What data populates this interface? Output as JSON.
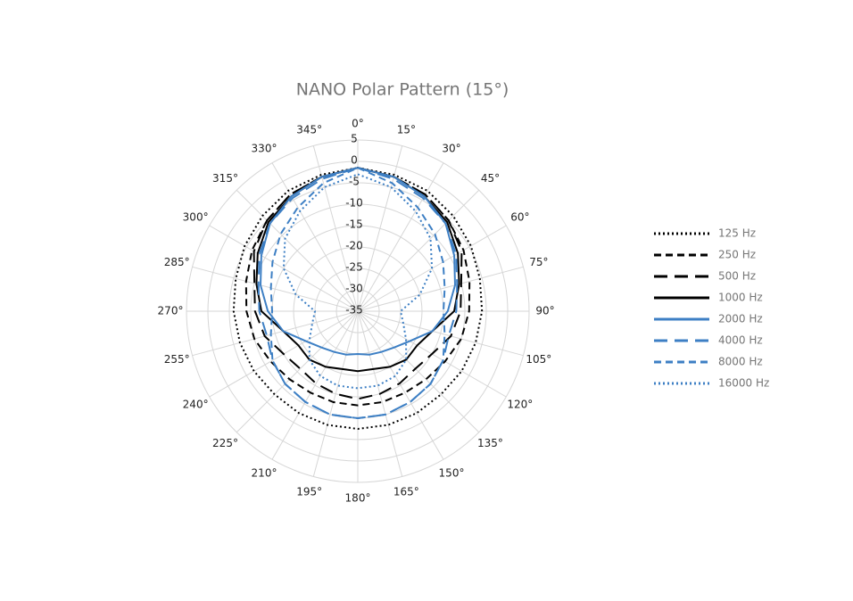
{
  "chart_data": {
    "type": "polar",
    "title": "NANO Polar Pattern (15°)",
    "categories": [
      "0°",
      "15°",
      "30°",
      "45°",
      "60°",
      "75°",
      "90°",
      "105°",
      "120°",
      "135°",
      "150°",
      "165°",
      "180°",
      "195°",
      "210°",
      "225°",
      "240°",
      "255°",
      "270°",
      "285°",
      "300°",
      "315°",
      "330°",
      "345°"
    ],
    "rlim": [
      -35,
      5
    ],
    "rticks": [
      -35,
      -30,
      -25,
      -20,
      -15,
      -10,
      -5,
      0,
      5
    ],
    "grid": true,
    "legend": "right",
    "series": [
      {
        "name": "125 Hz",
        "color": "#000000",
        "dash": "dot",
        "values": [
          -1.5,
          -2,
          -2.5,
          -3.5,
          -4.5,
          -5.5,
          -6,
          -6.5,
          -7,
          -7.5,
          -7.5,
          -7.5,
          -7.5,
          -7.5,
          -7.5,
          -7.5,
          -7,
          -6.5,
          -6,
          -5.5,
          -4.5,
          -3.5,
          -2.5,
          -2
        ]
      },
      {
        "name": "250 Hz",
        "color": "#000000",
        "dash": "dash",
        "values": [
          -1.5,
          -2.5,
          -3.5,
          -5,
          -6.5,
          -8,
          -9,
          -10,
          -11.5,
          -12.5,
          -13,
          -13,
          -13,
          -13,
          -13,
          -12.5,
          -11.5,
          -10,
          -9,
          -8,
          -6.5,
          -5,
          -3.5,
          -2.5
        ]
      },
      {
        "name": "500 Hz",
        "color": "#000000",
        "dash": "longdash",
        "values": [
          -1.5,
          -2.5,
          -3.5,
          -5,
          -7,
          -10,
          -11,
          -12.5,
          -15,
          -16,
          -15.5,
          -15,
          -14.5,
          -15,
          -15.5,
          -16,
          -15,
          -12.5,
          -11,
          -10,
          -7,
          -5,
          -3.5,
          -2.5
        ]
      },
      {
        "name": "1000 Hz",
        "color": "#000000",
        "dash": "solid",
        "values": [
          -1.5,
          -2.5,
          -4,
          -5.5,
          -8,
          -10.5,
          -12.5,
          -17,
          -19,
          -19,
          -20,
          -21,
          -21,
          -21,
          -20,
          -19,
          -19,
          -17,
          -12.5,
          -10.5,
          -8,
          -5.5,
          -4,
          -2.5
        ]
      },
      {
        "name": "2000 Hz",
        "color": "#3d7fc4",
        "dash": "solid",
        "values": [
          -1.5,
          -2.5,
          -4,
          -6,
          -9,
          -11.5,
          -14,
          -17,
          -21,
          -23,
          -24,
          -24.5,
          -25,
          -24.5,
          -24,
          -23,
          -21,
          -17,
          -14,
          -11.5,
          -9,
          -6,
          -4,
          -2.5
        ]
      },
      {
        "name": "4000 Hz",
        "color": "#3d7fc4",
        "dash": "longdash",
        "values": [
          -1.5,
          -3,
          -4.5,
          -6,
          -8.5,
          -11,
          -12,
          -13,
          -12,
          -11,
          -10.5,
          -10,
          -10,
          -10,
          -10.5,
          -11,
          -12,
          -13,
          -12,
          -11,
          -8.5,
          -6,
          -4.5,
          -3
        ]
      },
      {
        "name": "8000 Hz",
        "color": "#3d7fc4",
        "dash": "dash",
        "values": [
          -1.5,
          -4,
          -7,
          -9.5,
          -12,
          -14,
          -15,
          -14,
          -12,
          -11,
          -10.5,
          -10,
          -10,
          -10,
          -10.5,
          -11,
          -12,
          -14,
          -15,
          -14,
          -12,
          -9.5,
          -7,
          -4
        ]
      },
      {
        "name": "16000 Hz",
        "color": "#3d7fc4",
        "dash": "dot",
        "values": [
          -3,
          -5,
          -8,
          -11,
          -15,
          -20,
          -25,
          -24,
          -22,
          -19,
          -17.5,
          -17,
          -17,
          -17,
          -17.5,
          -19,
          -22,
          -24,
          -25,
          -20,
          -15,
          -11,
          -8,
          -5
        ]
      }
    ]
  }
}
